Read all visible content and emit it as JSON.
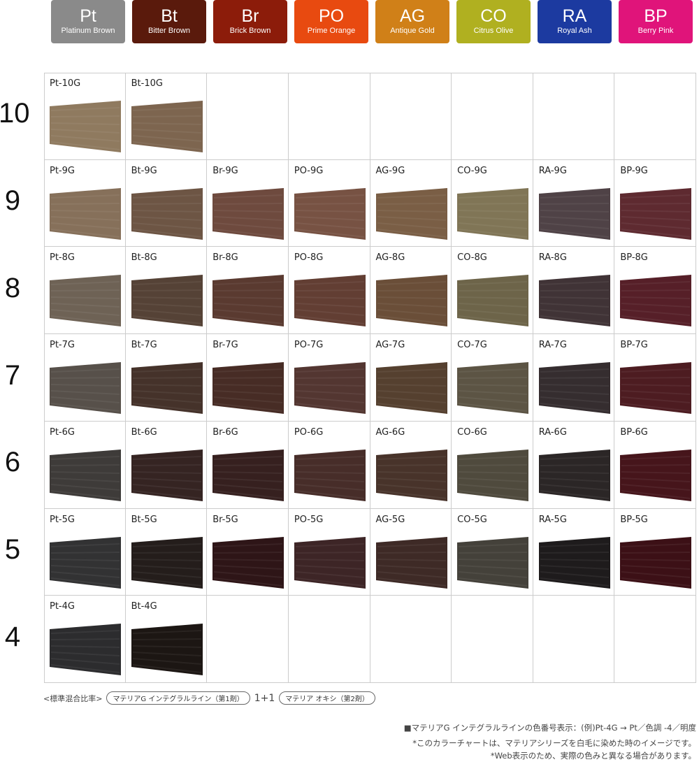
{
  "tags": [
    {
      "code": "Pt",
      "name": "Platinum Brown",
      "color": "#8a8a8a"
    },
    {
      "code": "Bt",
      "name": "Bitter Brown",
      "color": "#5a1a0c"
    },
    {
      "code": "Br",
      "name": "Brick Brown",
      "color": "#8c1c0a"
    },
    {
      "code": "PO",
      "name": "Prime Orange",
      "color": "#e84a10"
    },
    {
      "code": "AG",
      "name": "Antique Gold",
      "color": "#d08018"
    },
    {
      "code": "CO",
      "name": "Citrus Olive",
      "color": "#b0b020"
    },
    {
      "code": "RA",
      "name": "Royal Ash",
      "color": "#1c3aa0"
    },
    {
      "code": "BP",
      "name": "Berry Pink",
      "color": "#e0147a"
    }
  ],
  "grid": {
    "rows": [
      {
        "level": "10",
        "cells": [
          {
            "label": "Pt-10G",
            "color": "#8f7a5f"
          },
          {
            "label": "Bt-10G",
            "color": "#7d654f"
          },
          null,
          null,
          null,
          null,
          null,
          null
        ]
      },
      {
        "level": "9",
        "cells": [
          {
            "label": "Pt-9G",
            "color": "#86705a"
          },
          {
            "label": "Bt-9G",
            "color": "#6d5544"
          },
          {
            "label": "Br-9G",
            "color": "#6e4a3e"
          },
          {
            "label": "PO-9G",
            "color": "#775243"
          },
          {
            "label": "AG-9G",
            "color": "#7a5e45"
          },
          {
            "label": "CO-9G",
            "color": "#807556"
          },
          {
            "label": "RA-9G",
            "color": "#4f4246"
          },
          {
            "label": "BP-9G",
            "color": "#5e2a30"
          }
        ]
      },
      {
        "level": "8",
        "cells": [
          {
            "label": "Pt-8G",
            "color": "#6e6255"
          },
          {
            "label": "Bt-8G",
            "color": "#554236"
          },
          {
            "label": "Br-8G",
            "color": "#5a3a30"
          },
          {
            "label": "PO-8G",
            "color": "#623e33"
          },
          {
            "label": "AG-8G",
            "color": "#6a4e38"
          },
          {
            "label": "CO-8G",
            "color": "#6d6449"
          },
          {
            "label": "RA-8G",
            "color": "#403336"
          },
          {
            "label": "BP-8G",
            "color": "#561f28"
          }
        ]
      },
      {
        "level": "7",
        "cells": [
          {
            "label": "Pt-7G",
            "color": "#57504a"
          },
          {
            "label": "Bt-7G",
            "color": "#45322a"
          },
          {
            "label": "Br-7G",
            "color": "#472c25"
          },
          {
            "label": "PO-7G",
            "color": "#533631"
          },
          {
            "label": "AG-7G",
            "color": "#55402f"
          },
          {
            "label": "CO-7G",
            "color": "#5c5444"
          },
          {
            "label": "RA-7G",
            "color": "#352d2f"
          },
          {
            "label": "BP-7G",
            "color": "#4d1c21"
          }
        ]
      },
      {
        "level": "6",
        "cells": [
          {
            "label": "Pt-6G",
            "color": "#3e3b39"
          },
          {
            "label": "Bt-6G",
            "color": "#352422"
          },
          {
            "label": "Br-6G",
            "color": "#36201f"
          },
          {
            "label": "PO-6G",
            "color": "#472d29"
          },
          {
            "label": "AG-6G",
            "color": "#48332a"
          },
          {
            "label": "CO-6G",
            "color": "#4f4a3d"
          },
          {
            "label": "RA-6G",
            "color": "#2b2626"
          },
          {
            "label": "BP-6G",
            "color": "#46151b"
          }
        ]
      },
      {
        "level": "5",
        "cells": [
          {
            "label": "Pt-5G",
            "color": "#323233"
          },
          {
            "label": "Bt-5G",
            "color": "#241d1b"
          },
          {
            "label": "Br-5G",
            "color": "#2e1517"
          },
          {
            "label": "PO-5G",
            "color": "#3d2526"
          },
          {
            "label": "AG-5G",
            "color": "#3e2a26"
          },
          {
            "label": "CO-5G",
            "color": "#44413a"
          },
          {
            "label": "RA-5G",
            "color": "#1e1b1c"
          },
          {
            "label": "BP-5G",
            "color": "#3c1016"
          }
        ]
      },
      {
        "level": "4",
        "cells": [
          {
            "label": "Pt-4G",
            "color": "#2c2c2e"
          },
          {
            "label": "Bt-4G",
            "color": "#1c1613"
          },
          null,
          null,
          null,
          null,
          null,
          null
        ]
      }
    ]
  },
  "footer": {
    "mixing_label": "<標準混合比率>",
    "product1": "マテリアG インテグラルライン（第1剤）",
    "ratio": "1+1",
    "product2": "マテリア オキシ（第2剤）",
    "notes": [
      "■マテリアG インテグラルラインの色番号表示：(例)Pt-4G → Pt／色調 -4／明度",
      "*このカラーチャートは、マテリアシリーズを白毛に染めた時のイメージです。",
      "*Web表示のため、実際の色みと異なる場合があります。"
    ]
  }
}
